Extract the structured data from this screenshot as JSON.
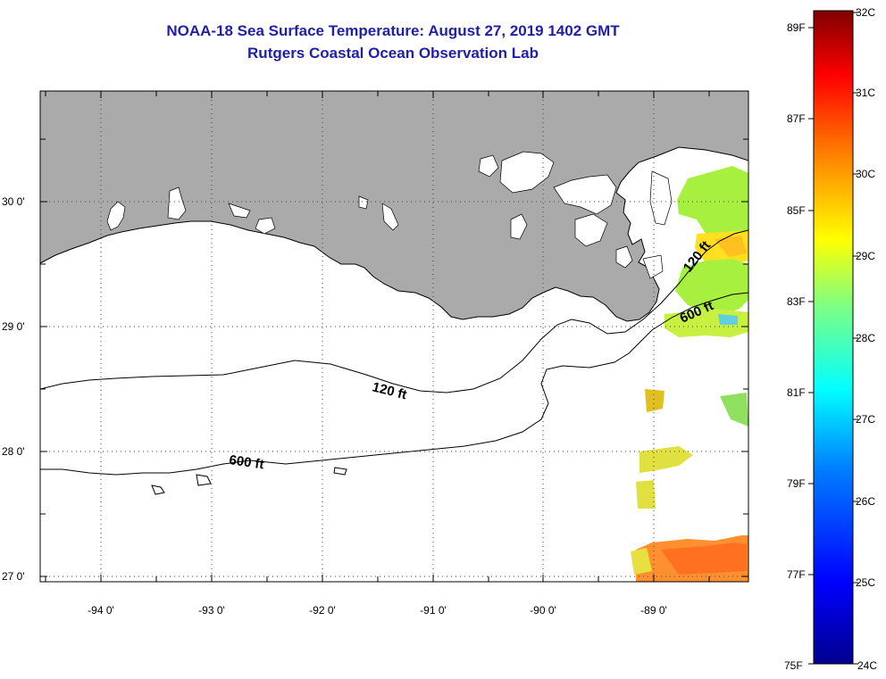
{
  "title": {
    "line1": "NOAA-18 Sea Surface Temperature:  August 27, 2019 1402 GMT",
    "line2": "Rutgers Coastal Ocean Observation Lab"
  },
  "map": {
    "lon_labels": [
      "-94 0'",
      "-93 0'",
      "-92 0'",
      "-91 0'",
      "-90 0'",
      "-89 0'"
    ],
    "lat_labels": [
      "30 0'",
      "29 0'",
      "28 0'",
      "27 0'"
    ],
    "contour_labels": {
      "c120_west": "120 ft",
      "c600_west": "600 ft",
      "c120_east": "120 ft",
      "c600_east": "600 ft"
    },
    "land_color": "#aaaaaa",
    "water_color": "#ffffff"
  },
  "colorbar": {
    "celsius_labels": [
      "32C",
      "31C",
      "30C",
      "29C",
      "28C",
      "27C",
      "26C",
      "25C",
      "24C"
    ],
    "fahrenheit_labels": [
      "89F",
      "87F",
      "85F",
      "83F",
      "81F",
      "79F",
      "77F",
      "75F"
    ],
    "range_celsius": [
      24,
      32
    ],
    "colors": [
      "#00008f",
      "#0000ff",
      "#0080ff",
      "#00ffff",
      "#80ff80",
      "#ffff00",
      "#ff8000",
      "#ff0000",
      "#800000"
    ]
  }
}
